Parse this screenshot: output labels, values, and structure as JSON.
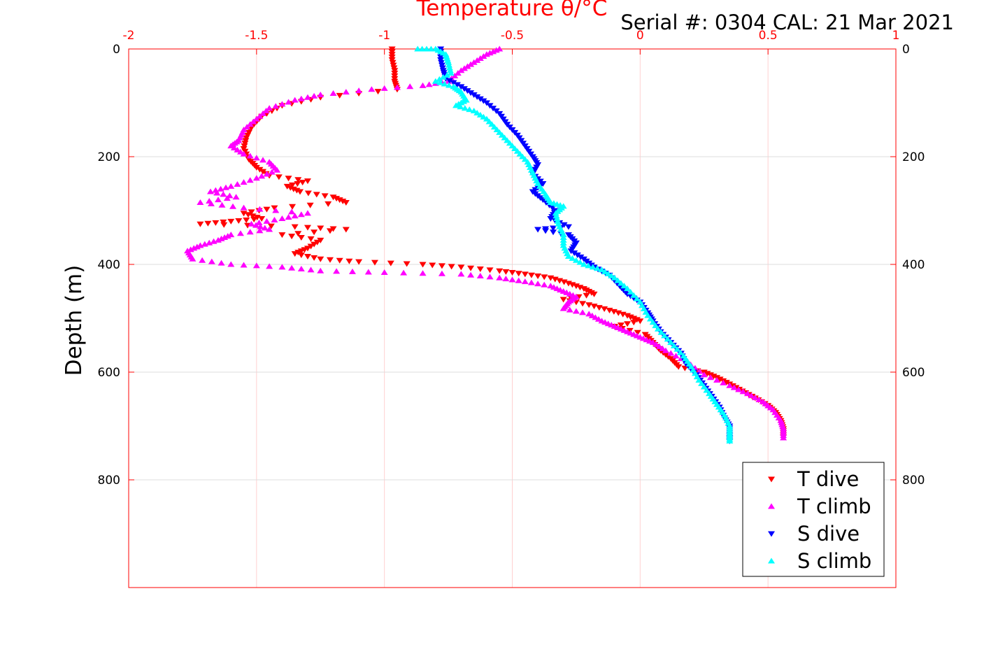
{
  "chart_data": {
    "type": "scatter",
    "title": "Serial #: 0304  CAL: 21 Mar 2021",
    "xlabel": "Temperature θ/°C",
    "ylabel": "Depth (m)",
    "xlim": [
      -2,
      1
    ],
    "ylim": [
      0,
      1000
    ],
    "y_reversed": true,
    "x_axis_position": "top",
    "x_ticks": [
      "-2",
      "-1.5",
      "-1",
      "-0.5",
      "0",
      "0.5",
      "1"
    ],
    "y_ticks": [
      "0",
      "200",
      "400",
      "600",
      "800"
    ],
    "grid": true,
    "legend_position": "bottom-right",
    "axis_color": "#ff0000",
    "series": [
      {
        "name": "T dive",
        "marker": "triangle-down",
        "color": "#ff0000",
        "points": [
          [
            -0.97,
            0
          ],
          [
            -0.97,
            20
          ],
          [
            -0.96,
            40
          ],
          [
            -0.96,
            60
          ],
          [
            -0.95,
            75
          ],
          [
            -1.25,
            90
          ],
          [
            -1.4,
            105
          ],
          [
            -1.48,
            125
          ],
          [
            -1.52,
            145
          ],
          [
            -1.54,
            165
          ],
          [
            -1.55,
            185
          ],
          [
            -1.53,
            205
          ],
          [
            -1.5,
            220
          ],
          [
            -1.45,
            235
          ],
          [
            -1.3,
            245
          ],
          [
            -1.38,
            255
          ],
          [
            -1.33,
            265
          ],
          [
            -1.2,
            275
          ],
          [
            -1.15,
            285
          ],
          [
            -1.43,
            295
          ],
          [
            -1.55,
            305
          ],
          [
            -1.48,
            315
          ],
          [
            -1.6,
            320
          ],
          [
            -1.72,
            325
          ],
          [
            -1.35,
            330
          ],
          [
            -1.15,
            335
          ],
          [
            -1.4,
            345
          ],
          [
            -1.25,
            355
          ],
          [
            -1.3,
            370
          ],
          [
            -1.35,
            380
          ],
          [
            -1.25,
            390
          ],
          [
            -1.1,
            395
          ],
          [
            -0.85,
            400
          ],
          [
            -0.7,
            405
          ],
          [
            -0.55,
            412
          ],
          [
            -0.45,
            418
          ],
          [
            -0.35,
            425
          ],
          [
            -0.28,
            435
          ],
          [
            -0.22,
            445
          ],
          [
            -0.18,
            455
          ],
          [
            -0.3,
            465
          ],
          [
            -0.2,
            475
          ],
          [
            -0.12,
            485
          ],
          [
            -0.05,
            495
          ],
          [
            0.0,
            505
          ],
          [
            -0.1,
            515
          ],
          [
            0.02,
            530
          ],
          [
            0.05,
            545
          ],
          [
            0.08,
            560
          ],
          [
            0.12,
            575
          ],
          [
            0.15,
            590
          ],
          [
            0.25,
            600
          ],
          [
            0.3,
            610
          ],
          [
            0.35,
            622
          ],
          [
            0.4,
            635
          ],
          [
            0.45,
            648
          ],
          [
            0.5,
            662
          ],
          [
            0.53,
            675
          ],
          [
            0.55,
            690
          ],
          [
            0.56,
            705
          ],
          [
            0.56,
            720
          ]
        ]
      },
      {
        "name": "T climb",
        "marker": "triangle-up",
        "color": "#ff00ff",
        "points": [
          [
            -0.55,
            0
          ],
          [
            -0.6,
            10
          ],
          [
            -0.65,
            25
          ],
          [
            -0.7,
            40
          ],
          [
            -0.75,
            60
          ],
          [
            -0.85,
            68
          ],
          [
            -1.05,
            75
          ],
          [
            -1.25,
            85
          ],
          [
            -1.35,
            95
          ],
          [
            -1.45,
            110
          ],
          [
            -1.5,
            130
          ],
          [
            -1.55,
            150
          ],
          [
            -1.57,
            170
          ],
          [
            -1.6,
            180
          ],
          [
            -1.55,
            195
          ],
          [
            -1.45,
            210
          ],
          [
            -1.42,
            225
          ],
          [
            -1.5,
            240
          ],
          [
            -1.6,
            255
          ],
          [
            -1.68,
            265
          ],
          [
            -1.58,
            275
          ],
          [
            -1.72,
            285
          ],
          [
            -1.55,
            295
          ],
          [
            -1.3,
            305
          ],
          [
            -1.4,
            315
          ],
          [
            -1.52,
            325
          ],
          [
            -1.45,
            335
          ],
          [
            -1.6,
            345
          ],
          [
            -1.65,
            355
          ],
          [
            -1.72,
            365
          ],
          [
            -1.77,
            375
          ],
          [
            -1.75,
            390
          ],
          [
            -1.6,
            400
          ],
          [
            -1.4,
            405
          ],
          [
            -1.25,
            412
          ],
          [
            -1.0,
            415
          ],
          [
            -0.7,
            418
          ],
          [
            -0.55,
            425
          ],
          [
            -0.45,
            432
          ],
          [
            -0.35,
            440
          ],
          [
            -0.3,
            450
          ],
          [
            -0.25,
            460
          ],
          [
            -0.28,
            470
          ],
          [
            -0.3,
            482
          ],
          [
            -0.2,
            492
          ],
          [
            -0.15,
            505
          ],
          [
            -0.1,
            515
          ],
          [
            -0.05,
            525
          ],
          [
            0.0,
            535
          ],
          [
            0.05,
            545
          ],
          [
            0.1,
            560
          ],
          [
            0.18,
            580
          ],
          [
            0.25,
            605
          ],
          [
            0.35,
            625
          ],
          [
            0.42,
            640
          ],
          [
            0.48,
            655
          ],
          [
            0.52,
            670
          ],
          [
            0.55,
            690
          ],
          [
            0.56,
            705
          ],
          [
            0.56,
            722
          ]
        ]
      },
      {
        "name": "S dive",
        "marker": "triangle-down",
        "color": "#0000ff",
        "points": [
          [
            -0.78,
            0
          ],
          [
            -0.78,
            20
          ],
          [
            -0.77,
            40
          ],
          [
            -0.76,
            55
          ],
          [
            -0.7,
            70
          ],
          [
            -0.65,
            85
          ],
          [
            -0.6,
            100
          ],
          [
            -0.55,
            120
          ],
          [
            -0.52,
            140
          ],
          [
            -0.48,
            160
          ],
          [
            -0.45,
            180
          ],
          [
            -0.42,
            200
          ],
          [
            -0.4,
            215
          ],
          [
            -0.42,
            232
          ],
          [
            -0.38,
            250
          ],
          [
            -0.42,
            265
          ],
          [
            -0.38,
            280
          ],
          [
            -0.33,
            300
          ],
          [
            -0.35,
            315
          ],
          [
            -0.28,
            330
          ],
          [
            -0.4,
            335
          ],
          [
            -0.28,
            345
          ],
          [
            -0.25,
            360
          ],
          [
            -0.27,
            375
          ],
          [
            -0.22,
            390
          ],
          [
            -0.18,
            405
          ],
          [
            -0.12,
            420
          ],
          [
            -0.08,
            440
          ],
          [
            -0.05,
            455
          ],
          [
            0.0,
            470
          ],
          [
            0.03,
            490
          ],
          [
            0.05,
            505
          ],
          [
            0.08,
            525
          ],
          [
            0.12,
            545
          ],
          [
            0.16,
            565
          ],
          [
            0.18,
            585
          ],
          [
            0.22,
            605
          ],
          [
            0.25,
            625
          ],
          [
            0.28,
            645
          ],
          [
            0.31,
            665
          ],
          [
            0.33,
            685
          ],
          [
            0.35,
            700
          ],
          [
            0.35,
            715
          ],
          [
            0.35,
            728
          ]
        ]
      },
      {
        "name": "S climb",
        "marker": "triangle-up",
        "color": "#00ffff",
        "points": [
          [
            -0.87,
            0
          ],
          [
            -0.8,
            0
          ],
          [
            -0.76,
            10
          ],
          [
            -0.75,
            25
          ],
          [
            -0.74,
            45
          ],
          [
            -0.8,
            60
          ],
          [
            -0.73,
            70
          ],
          [
            -0.7,
            80
          ],
          [
            -0.68,
            95
          ],
          [
            -0.72,
            105
          ],
          [
            -0.65,
            115
          ],
          [
            -0.6,
            130
          ],
          [
            -0.56,
            150
          ],
          [
            -0.52,
            170
          ],
          [
            -0.48,
            190
          ],
          [
            -0.44,
            210
          ],
          [
            -0.42,
            230
          ],
          [
            -0.4,
            250
          ],
          [
            -0.37,
            270
          ],
          [
            -0.35,
            285
          ],
          [
            -0.3,
            292
          ],
          [
            -0.33,
            305
          ],
          [
            -0.32,
            325
          ],
          [
            -0.3,
            345
          ],
          [
            -0.3,
            365
          ],
          [
            -0.28,
            385
          ],
          [
            -0.22,
            400
          ],
          [
            -0.15,
            410
          ],
          [
            -0.1,
            425
          ],
          [
            -0.05,
            445
          ],
          [
            0.0,
            470
          ],
          [
            0.03,
            495
          ],
          [
            0.07,
            520
          ],
          [
            0.12,
            545
          ],
          [
            0.17,
            570
          ],
          [
            0.2,
            590
          ],
          [
            0.23,
            615
          ],
          [
            0.27,
            640
          ],
          [
            0.3,
            660
          ],
          [
            0.33,
            680
          ],
          [
            0.35,
            700
          ],
          [
            0.35,
            715
          ],
          [
            0.35,
            728
          ]
        ]
      }
    ]
  }
}
